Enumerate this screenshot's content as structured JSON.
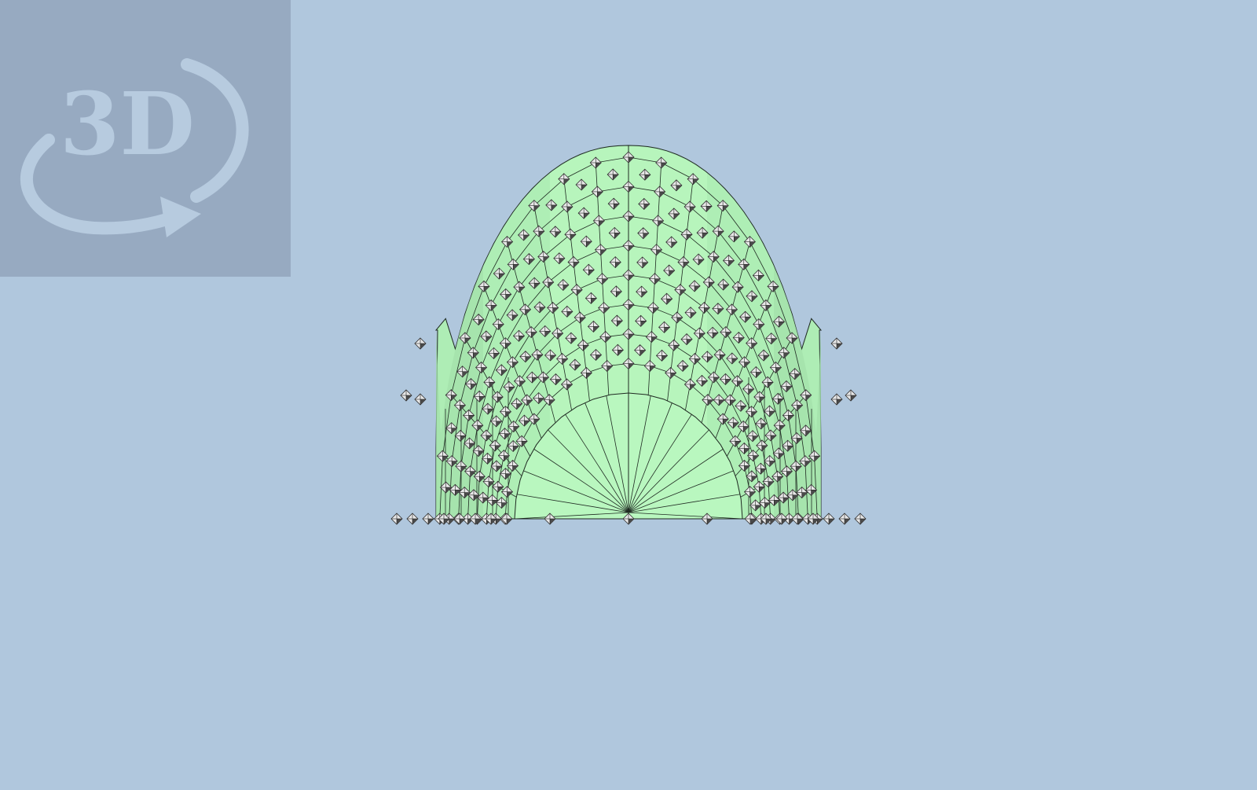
{
  "viewport": {
    "background_color": "#b0c7dd"
  },
  "nav_widget": {
    "label": "3D",
    "icon": "rotate-3d-icon",
    "panel_color": "#97aac1",
    "glyph_color": "#b7cbdf"
  },
  "model": {
    "type": "fem-mesh",
    "fill_light": "#b9f7bf",
    "fill_mid": "#aeedb5",
    "fill_dark": "#a3e0ab",
    "edge_color": "#1f2a22",
    "node_marker": "diamond-node-icon",
    "node_color_light": "#e8e8e8",
    "node_color_dark": "#4a4a4a"
  }
}
